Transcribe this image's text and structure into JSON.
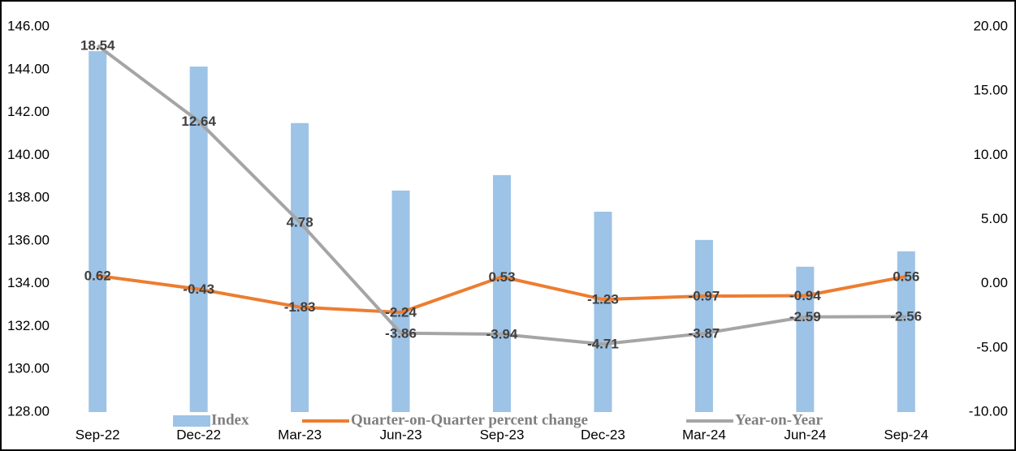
{
  "chart_data": {
    "type": "bar_line",
    "categories": [
      "Sep-22",
      "Dec-22",
      "Mar-23",
      "Jun-23",
      "Sep-23",
      "Dec-23",
      "Mar-24",
      "Jun-24",
      "Sep-24"
    ],
    "series": [
      {
        "name": "Index",
        "type": "bar",
        "color": "#9dc3e6",
        "values": [
          144.86,
          144.14,
          141.5,
          138.35,
          139.07,
          137.36,
          136.04,
          134.79,
          135.51
        ]
      },
      {
        "name": "Quarter-on-Quarter percent change",
        "type": "line",
        "axis": "y2",
        "color": "#ed7d31",
        "values": [
          0.62,
          -0.43,
          -1.83,
          -2.24,
          0.53,
          -1.23,
          -0.97,
          -0.94,
          0.56
        ]
      },
      {
        "name": "Year-on-Year",
        "type": "line",
        "axis": "y2",
        "color": "#a5a5a5",
        "values": [
          18.54,
          12.64,
          4.78,
          -3.86,
          -3.94,
          -4.71,
          -3.87,
          -2.59,
          -2.56
        ]
      }
    ],
    "ylim": [
      128,
      146
    ],
    "yticks": [
      {
        "value": 128,
        "label": "128.00"
      },
      {
        "value": 130,
        "label": "130.00"
      },
      {
        "value": 132,
        "label": "132.00"
      },
      {
        "value": 134,
        "label": "134.00"
      },
      {
        "value": 136,
        "label": "136.00"
      },
      {
        "value": 138,
        "label": "138.00"
      },
      {
        "value": 140,
        "label": "140.00"
      },
      {
        "value": 142,
        "label": "142.00"
      },
      {
        "value": 144,
        "label": "144.00"
      },
      {
        "value": 146,
        "label": "146.00"
      }
    ],
    "y2lim": [
      -10,
      20
    ],
    "y2ticks": [
      {
        "value": -10,
        "label": "-10.00"
      },
      {
        "value": -5,
        "label": "-5.00"
      },
      {
        "value": 0,
        "label": "0.00"
      },
      {
        "value": 5,
        "label": "5.00"
      },
      {
        "value": 10,
        "label": "10.00"
      },
      {
        "value": 15,
        "label": "15.00"
      },
      {
        "value": 20,
        "label": "20.00"
      }
    ],
    "grid": false
  }
}
